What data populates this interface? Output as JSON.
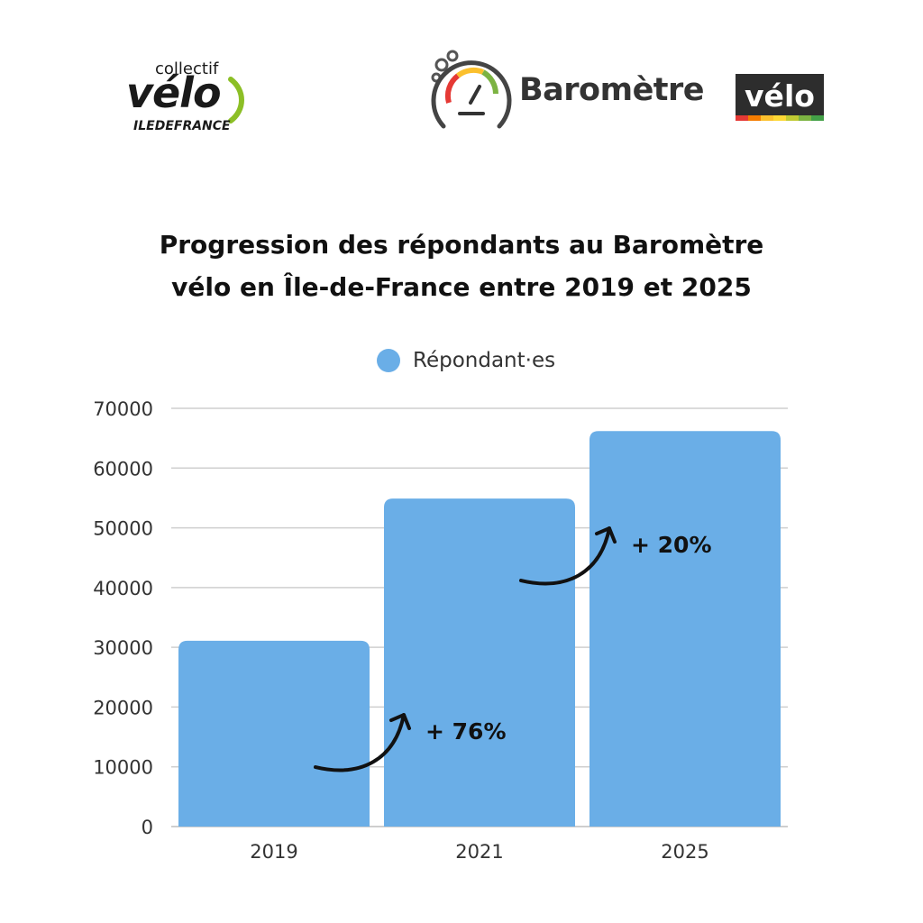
{
  "logos": {
    "collectif": {
      "small_word": "collectif",
      "big_word": "vélo",
      "region": "ILEDEFRANCE",
      "accent_color": "#8cbf26"
    },
    "barometre": {
      "word": "Baromètre",
      "tag": "vélo",
      "stripe_colors": [
        "#e53935",
        "#f57c00",
        "#fbc02d",
        "#fdd835",
        "#c0ca33",
        "#7cb342",
        "#43a047"
      ]
    }
  },
  "title_lines": [
    "Progression des répondants au Baromètre",
    "vélo en Île-de-France entre 2019 et 2025"
  ],
  "chart_data": {
    "type": "bar",
    "title": "Progression des répondants au Baromètre vélo en Île-de-France entre 2019 et 2025",
    "categories": [
      "2019",
      "2021",
      "2025"
    ],
    "series": [
      {
        "name": "Répondant·es",
        "values": [
          31100,
          54900,
          66200
        ],
        "color": "#6aaee7"
      }
    ],
    "xlabel": "",
    "ylabel": "",
    "ylim": [
      0,
      70000
    ],
    "yticks": [
      0,
      10000,
      20000,
      30000,
      40000,
      50000,
      60000,
      70000
    ],
    "grid": true,
    "legend_position": "top-center",
    "annotations": [
      {
        "text": "+ 76%",
        "from": "2019",
        "to": "2021"
      },
      {
        "text": "+ 20%",
        "from": "2021",
        "to": "2025"
      }
    ]
  }
}
